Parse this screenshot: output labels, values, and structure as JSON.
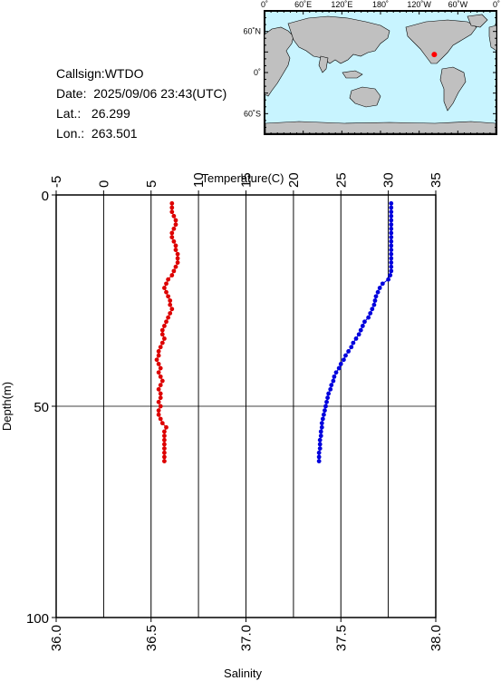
{
  "info": {
    "callsign": "Callsign:WTDO",
    "date": "Date:  2025/09/06 23:43(UTC)",
    "lat": "Lat.:   26.299",
    "lon": "Lon.:  263.501"
  },
  "map": {
    "top_labels": [
      "0˚",
      "60˚E",
      "120˚E",
      "180˚",
      "120˚W",
      "60˚W",
      "0˚"
    ],
    "left_labels": [
      "60˚N",
      "0˚",
      "60˚S"
    ],
    "ocean_color": "#c8f4ff",
    "land_color": "#c0c0c0",
    "marker_color": "#ff0000",
    "station_lat": 26.299,
    "station_lon": 263.501
  },
  "chart_data": {
    "type": "scatter",
    "title": "",
    "xlabel_top": "Temperature(C)",
    "xlabel_bottom": "Salinity",
    "ylabel": "Depth(m)",
    "temperature_axis": {
      "lim": [
        -5,
        35
      ],
      "ticks": [
        -5,
        0,
        5,
        10,
        15,
        20,
        25,
        30,
        35
      ]
    },
    "salinity_axis": {
      "lim": [
        36.0,
        38.0
      ],
      "ticks": [
        "36.0",
        "36.5",
        "37.0",
        "37.5",
        "38.0"
      ]
    },
    "depth_axis": {
      "lim": [
        0,
        100
      ],
      "ticks": [
        0,
        50,
        100
      ],
      "inverted": true
    },
    "grid": true,
    "series": [
      {
        "variable": "temperature",
        "color": "#0000dd",
        "points": [
          [
            30.3,
            2
          ],
          [
            30.3,
            3
          ],
          [
            30.3,
            4
          ],
          [
            30.3,
            5
          ],
          [
            30.3,
            6
          ],
          [
            30.3,
            7
          ],
          [
            30.3,
            8
          ],
          [
            30.3,
            9
          ],
          [
            30.3,
            10
          ],
          [
            30.3,
            11
          ],
          [
            30.3,
            12
          ],
          [
            30.3,
            13
          ],
          [
            30.3,
            14
          ],
          [
            30.3,
            15
          ],
          [
            30.3,
            16
          ],
          [
            30.3,
            17
          ],
          [
            30.3,
            18
          ],
          [
            30.2,
            19
          ],
          [
            30.0,
            20
          ],
          [
            29.4,
            21
          ],
          [
            29.1,
            22
          ],
          [
            28.9,
            23
          ],
          [
            28.7,
            24
          ],
          [
            28.6,
            25
          ],
          [
            28.5,
            26
          ],
          [
            28.3,
            27
          ],
          [
            28.1,
            28
          ],
          [
            27.9,
            29
          ],
          [
            27.5,
            30
          ],
          [
            27.3,
            31
          ],
          [
            27.1,
            32
          ],
          [
            26.9,
            33
          ],
          [
            26.6,
            34
          ],
          [
            26.3,
            35
          ],
          [
            26.1,
            36
          ],
          [
            25.8,
            37
          ],
          [
            25.5,
            38
          ],
          [
            25.3,
            39
          ],
          [
            25.0,
            40
          ],
          [
            24.8,
            41
          ],
          [
            24.5,
            42
          ],
          [
            24.3,
            43
          ],
          [
            24.2,
            44
          ],
          [
            24.0,
            45
          ],
          [
            23.9,
            46
          ],
          [
            23.7,
            47
          ],
          [
            23.6,
            48
          ],
          [
            23.5,
            49
          ],
          [
            23.4,
            50
          ],
          [
            23.3,
            51
          ],
          [
            23.2,
            52
          ],
          [
            23.1,
            53
          ],
          [
            23.0,
            54
          ],
          [
            23.0,
            55
          ],
          [
            22.9,
            56
          ],
          [
            22.9,
            57
          ],
          [
            22.8,
            58
          ],
          [
            22.8,
            59
          ],
          [
            22.8,
            60
          ],
          [
            22.7,
            61
          ],
          [
            22.7,
            62
          ],
          [
            22.7,
            63
          ]
        ]
      },
      {
        "variable": "salinity",
        "color": "#dd0000",
        "points": [
          [
            36.61,
            2
          ],
          [
            36.61,
            3
          ],
          [
            36.61,
            4
          ],
          [
            36.62,
            5
          ],
          [
            36.63,
            6
          ],
          [
            36.63,
            7
          ],
          [
            36.62,
            8
          ],
          [
            36.61,
            9
          ],
          [
            36.61,
            10
          ],
          [
            36.62,
            11
          ],
          [
            36.63,
            12
          ],
          [
            36.63,
            13
          ],
          [
            36.64,
            14
          ],
          [
            36.64,
            15
          ],
          [
            36.64,
            16
          ],
          [
            36.63,
            17
          ],
          [
            36.62,
            18
          ],
          [
            36.61,
            19
          ],
          [
            36.59,
            20
          ],
          [
            36.58,
            21
          ],
          [
            36.57,
            22
          ],
          [
            36.58,
            23
          ],
          [
            36.59,
            24
          ],
          [
            36.6,
            25
          ],
          [
            36.6,
            26
          ],
          [
            36.61,
            27
          ],
          [
            36.6,
            28
          ],
          [
            36.59,
            29
          ],
          [
            36.58,
            30
          ],
          [
            36.57,
            31
          ],
          [
            36.56,
            32
          ],
          [
            36.56,
            33
          ],
          [
            36.57,
            34
          ],
          [
            36.56,
            35
          ],
          [
            36.55,
            36
          ],
          [
            36.54,
            37
          ],
          [
            36.54,
            38
          ],
          [
            36.53,
            39
          ],
          [
            36.54,
            40
          ],
          [
            36.55,
            41
          ],
          [
            36.54,
            42
          ],
          [
            36.55,
            43
          ],
          [
            36.56,
            44
          ],
          [
            36.55,
            45
          ],
          [
            36.54,
            46
          ],
          [
            36.55,
            47
          ],
          [
            36.55,
            48
          ],
          [
            36.54,
            49
          ],
          [
            36.55,
            50
          ],
          [
            36.54,
            51
          ],
          [
            36.54,
            52
          ],
          [
            36.55,
            53
          ],
          [
            36.56,
            54
          ],
          [
            36.58,
            55
          ],
          [
            36.57,
            56
          ],
          [
            36.57,
            57
          ],
          [
            36.57,
            58
          ],
          [
            36.57,
            59
          ],
          [
            36.57,
            60
          ],
          [
            36.57,
            61
          ],
          [
            36.57,
            62
          ],
          [
            36.57,
            63
          ]
        ]
      }
    ]
  }
}
